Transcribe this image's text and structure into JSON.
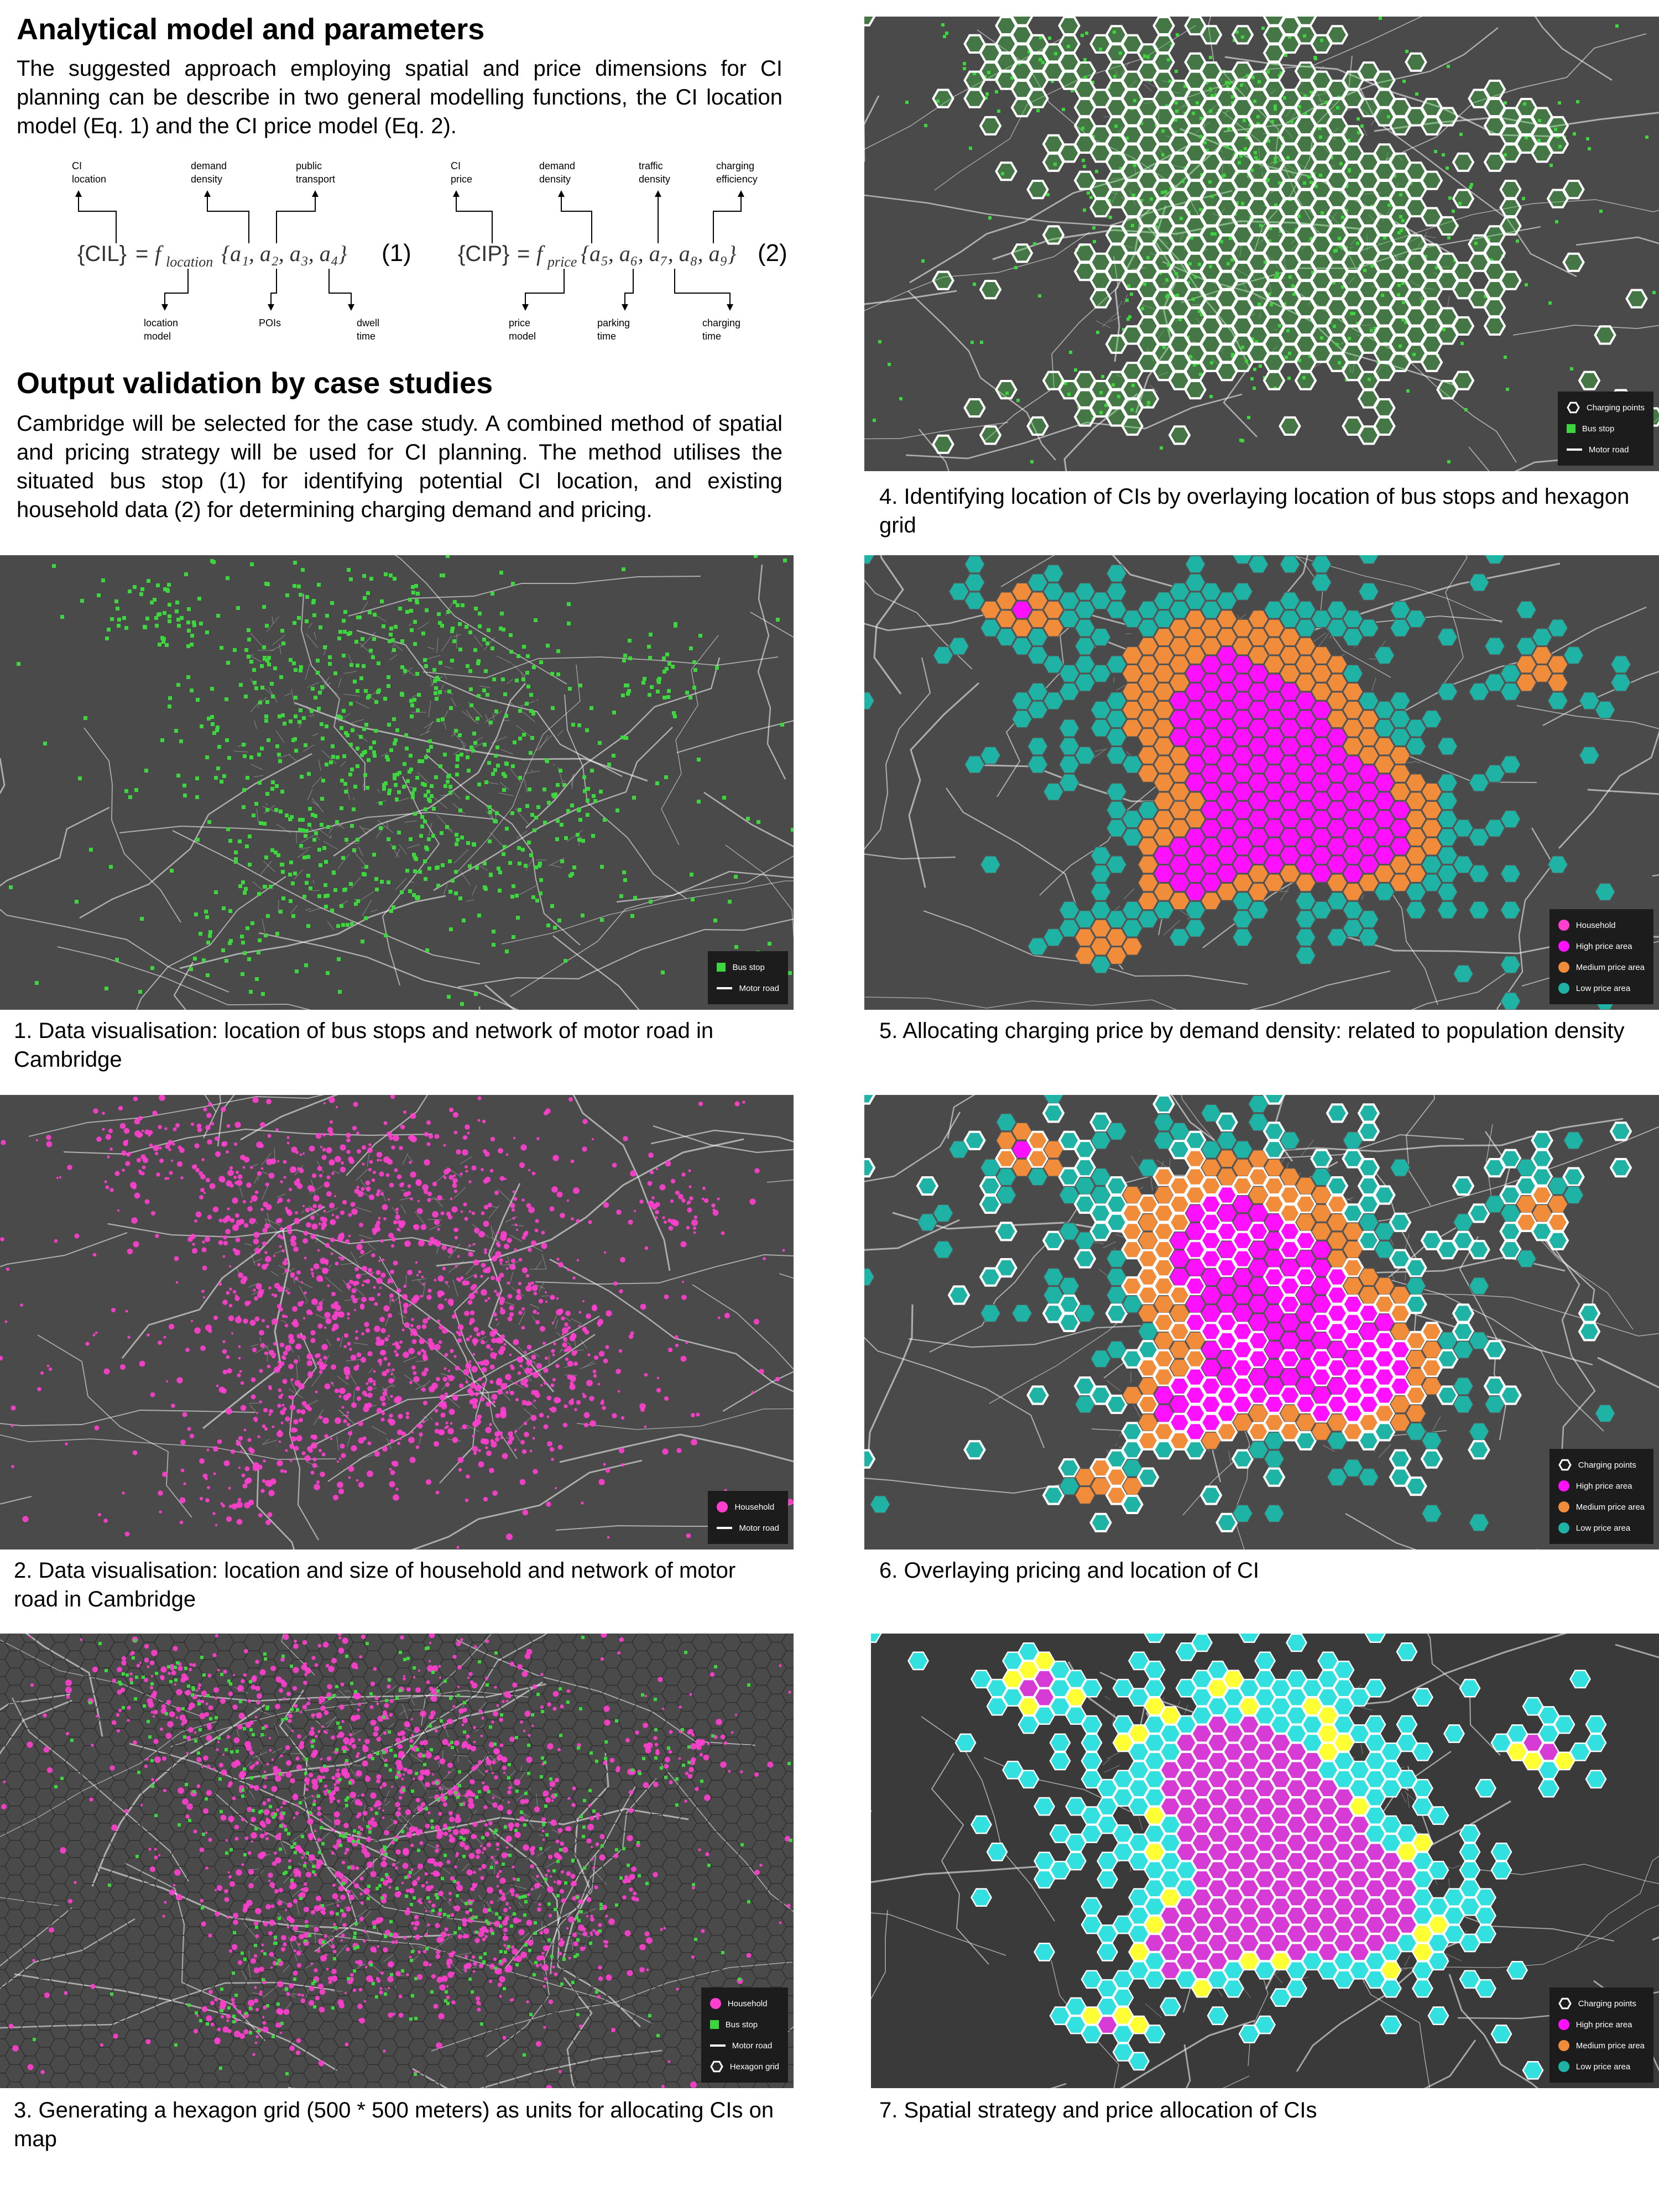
{
  "sections": {
    "model_title": "Analytical model and parameters",
    "model_text": "The suggested approach employing spatial and price dimensions for CI planning can be describe in two general modelling functions, the CI location model (Eq. 1) and the CI price model (Eq. 2).",
    "validation_title": "Output validation by case studies",
    "validation_text": "Cambridge will be selected for the case study. A combined method of spatial and pricing strategy will be used for CI planning. The method utilises the situated bus stop (1) for identifying potential CI location, and existing household data (2) for determining charging demand and pricing."
  },
  "equations": {
    "eq1": {
      "lhs": "{CIL}",
      "func": "f",
      "func_sub": "location",
      "args": "{a₁, a₂, a₃, a₄}",
      "number": "(1)",
      "top_labels": [
        [
          "CI",
          "location"
        ],
        [
          "demand",
          "density"
        ],
        [
          "public",
          "transport"
        ]
      ],
      "bottom_labels": [
        [
          "location",
          "model"
        ],
        [
          "POIs"
        ],
        [
          "dwell",
          "time"
        ]
      ]
    },
    "eq2": {
      "lhs": "{CIP}",
      "func": "f",
      "func_sub": "price",
      "args": "{a₅, a₆, a₇, a₈, a₉}",
      "number": "(2)",
      "top_labels": [
        [
          "CI",
          "price"
        ],
        [
          "demand",
          "density"
        ],
        [
          "traffic",
          "density"
        ],
        [
          "charging",
          "efficiency"
        ]
      ],
      "bottom_labels": [
        [
          "price",
          "model"
        ],
        [
          "parking",
          "time"
        ],
        [
          "charging",
          "time"
        ]
      ]
    }
  },
  "maps": {
    "map1": {
      "caption": "1. Data visualisation: location of bus stops and network of motor road in Cambridge",
      "legend": [
        {
          "label": "Bus stop",
          "symbol": "square",
          "color": "#3ed63e"
        },
        {
          "label": "Motor road",
          "symbol": "line",
          "color": "#ffffff"
        }
      ]
    },
    "map2": {
      "caption": "2. Data visualisation: location and size of household and network of motor road in Cambridge",
      "legend": [
        {
          "label": "Household",
          "symbol": "circle",
          "color": "#ff3fd0"
        },
        {
          "label": "Motor road",
          "symbol": "line",
          "color": "#ffffff"
        }
      ]
    },
    "map3": {
      "caption": "3. Generating a hexagon grid (500 * 500 meters) as units for allocating CIs on map",
      "legend": [
        {
          "label": "Household",
          "symbol": "circle",
          "color": "#ff3fd0"
        },
        {
          "label": "Bus stop",
          "symbol": "square",
          "color": "#3ed63e"
        },
        {
          "label": "Motor road",
          "symbol": "line",
          "color": "#ffffff"
        },
        {
          "label": "Hexagon grid",
          "symbol": "hex",
          "color": "#2a2a2a"
        }
      ]
    },
    "map4": {
      "caption": "4. Identifying location of CIs by overlaying location of bus stops and hexagon grid",
      "legend": [
        {
          "label": "Charging points",
          "symbol": "hex",
          "color": "#ffffff"
        },
        {
          "label": "Bus stop",
          "symbol": "square",
          "color": "#3ed63e"
        },
        {
          "label": "Motor road",
          "symbol": "line",
          "color": "#ffffff"
        }
      ]
    },
    "map5": {
      "caption": "5. Allocating charging price by demand density: related to population density",
      "legend": [
        {
          "label": "Household",
          "symbol": "circle",
          "color": "#ff3fd0"
        },
        {
          "label": "High price area",
          "symbol": "circle",
          "color": "#ff10ff"
        },
        {
          "label": "Medium price area",
          "symbol": "circle",
          "color": "#f08c3a"
        },
        {
          "label": "Low price area",
          "symbol": "circle",
          "color": "#1fb3a6"
        }
      ]
    },
    "map6": {
      "caption": "6. Overlaying pricing and location of CI",
      "legend": [
        {
          "label": "Charging points",
          "symbol": "hex",
          "color": "#ffffff"
        },
        {
          "label": "High price area",
          "symbol": "circle",
          "color": "#ff10ff"
        },
        {
          "label": "Medium price area",
          "symbol": "circle",
          "color": "#f08c3a"
        },
        {
          "label": "Low price area",
          "symbol": "circle",
          "color": "#1fb3a6"
        }
      ]
    },
    "map7": {
      "caption": "7. Spatial strategy and price allocation of CIs",
      "legend": [
        {
          "label": "Charging points",
          "symbol": "hex",
          "color": "#ffffff"
        },
        {
          "label": "High price area",
          "symbol": "circle",
          "color": "#ff10ff"
        },
        {
          "label": "Medium price area",
          "symbol": "circle",
          "color": "#f08c3a"
        },
        {
          "label": "Low price area",
          "symbol": "circle",
          "color": "#1fb3a6"
        }
      ]
    }
  },
  "colors": {
    "map_background": "#4a4a4a",
    "road": "#ffffff",
    "bus_stop": "#3ed63e",
    "household": "#ff3fd0",
    "high_price": "#ff10ff",
    "medium_price": "#f08c3a",
    "low_price": "#1fb3a6",
    "map7_high": "#d63bd6",
    "map7_medium": "#ffff33",
    "map7_low": "#33e0e0"
  }
}
